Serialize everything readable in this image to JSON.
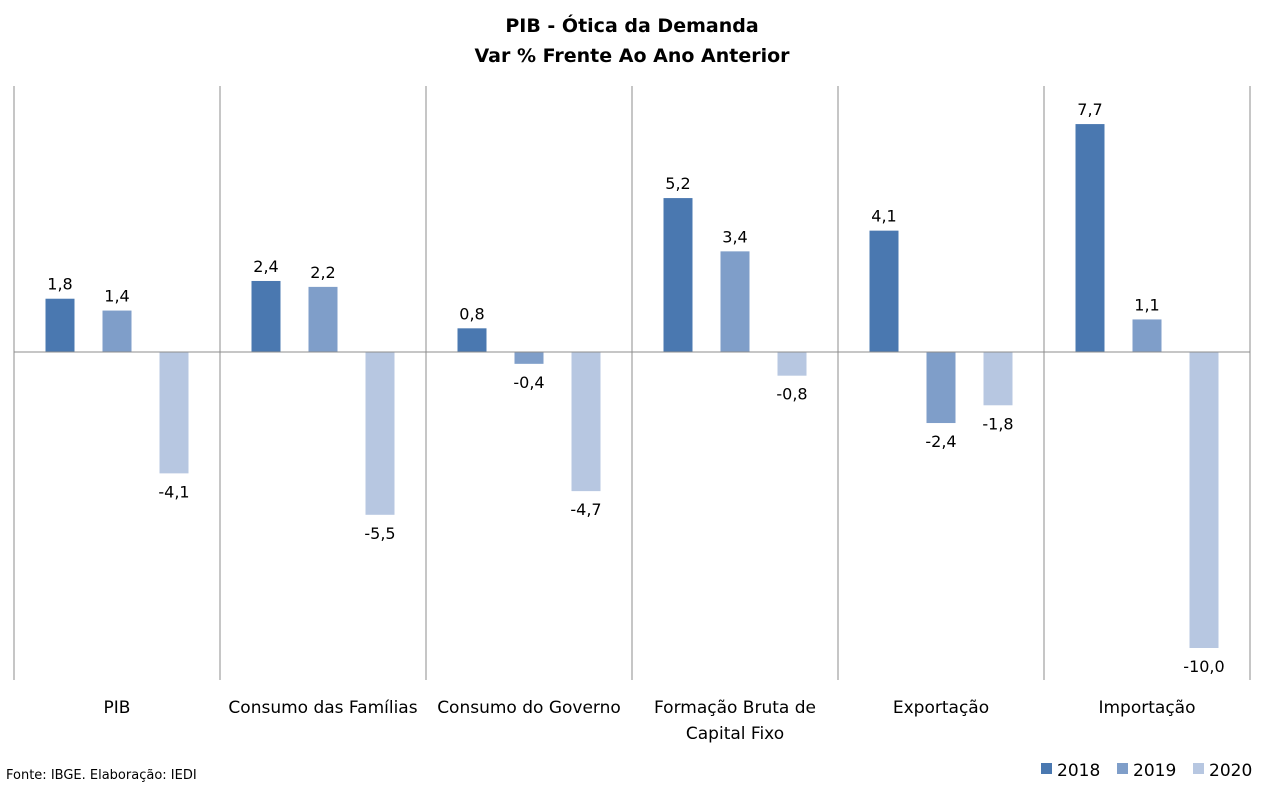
{
  "chart_data": {
    "type": "bar",
    "title": "PIB - Ótica da Demanda",
    "subtitle": "Var % Frente Ao Ano Anterior",
    "categories": [
      [
        "PIB"
      ],
      [
        "Consumo das Famílias"
      ],
      [
        "Consumo do Governo"
      ],
      [
        "Formação Bruta de",
        "Capital Fixo"
      ],
      [
        "Exportação"
      ],
      [
        "Importação"
      ]
    ],
    "series": [
      {
        "name": "2018",
        "color": "#4a78b0",
        "values": [
          1.8,
          2.4,
          0.8,
          5.2,
          4.1,
          7.7
        ],
        "labels": [
          "1,8",
          "2,4",
          "0,8",
          "5,2",
          "4,1",
          "7,7"
        ]
      },
      {
        "name": "2019",
        "color": "#7f9ec9",
        "values": [
          1.4,
          2.2,
          -0.4,
          3.4,
          -2.4,
          1.1
        ],
        "labels": [
          "1,4",
          "2,2",
          "-0,4",
          "3,4",
          "-2,4",
          "1,1"
        ]
      },
      {
        "name": "2020",
        "color": "#b7c7e1",
        "values": [
          -4.1,
          -5.5,
          -4.7,
          -0.8,
          -1.8,
          -10.0
        ],
        "labels": [
          "-4,1",
          "-5,5",
          "-4,7",
          "-0,8",
          "-1,8",
          "-10,0"
        ]
      }
    ],
    "ylim": [
      -11.0,
      9.0
    ],
    "grid": false,
    "legend": "bottom-right",
    "xlabel": "",
    "ylabel": ""
  },
  "footer": {
    "source": "Fonte: IBGE. Elaboração: IEDI"
  }
}
